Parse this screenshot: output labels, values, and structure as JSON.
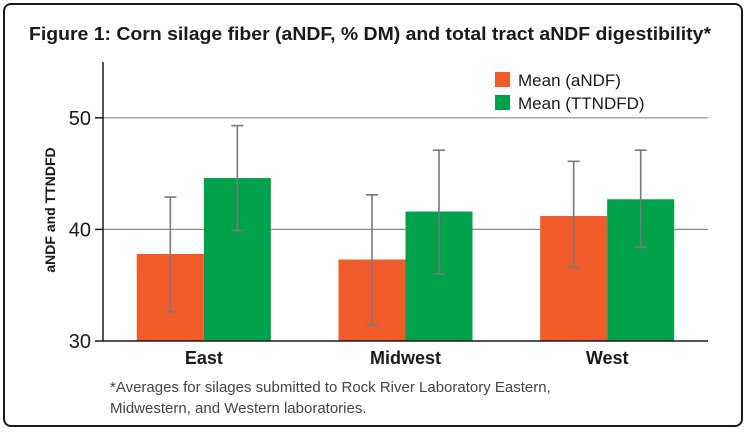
{
  "chart_data": {
    "type": "bar",
    "title": "Figure 1: Corn silage fiber (aNDF, % DM) and total tract aNDF digestibility*",
    "ylabel": "aNDF and TTNDFD",
    "xlabel": "",
    "categories": [
      "East",
      "Midwest",
      "West"
    ],
    "ylim": [
      30,
      55
    ],
    "yticks": [
      30,
      40,
      50
    ],
    "ytick_labels": [
      "30",
      "40",
      "50"
    ],
    "grid": true,
    "legend_position": "top-right",
    "series": [
      {
        "name": "Mean (aNDF)",
        "color": "#f15a29",
        "values": [
          37.8,
          37.3,
          41.2
        ],
        "err_low": [
          32.6,
          31.4,
          36.6
        ],
        "err_high": [
          42.9,
          43.1,
          46.1
        ]
      },
      {
        "name": "Mean (TTNDFD)",
        "color": "#00a14b",
        "values": [
          44.6,
          41.6,
          42.7
        ],
        "err_low": [
          39.9,
          36.0,
          38.4
        ],
        "err_high": [
          49.3,
          47.1,
          47.1
        ]
      }
    ],
    "footnote": "*Averages for silages submitted to Rock River Laboratory Eastern, Midwestern, and Western laboratories."
  }
}
